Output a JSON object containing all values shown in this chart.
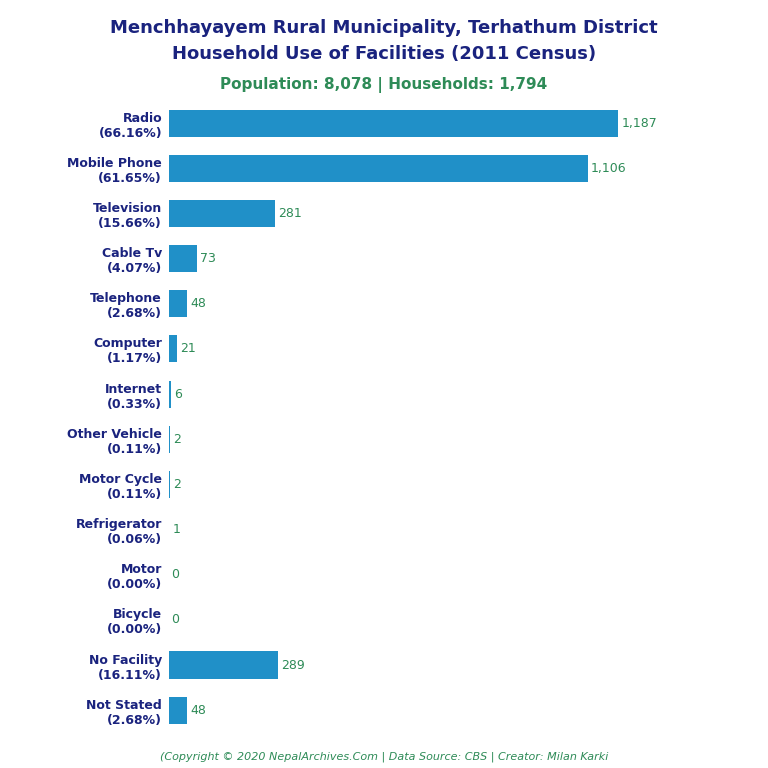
{
  "title_line1": "Menchhayayem Rural Municipality, Terhathum District",
  "title_line2": "Household Use of Facilities (2011 Census)",
  "subtitle": "Population: 8,078 | Households: 1,794",
  "footer": "(Copyright © 2020 NepalArchives.Com | Data Source: CBS | Creator: Milan Karki",
  "categories": [
    "Radio\n(66.16%)",
    "Mobile Phone\n(61.65%)",
    "Television\n(15.66%)",
    "Cable Tv\n(4.07%)",
    "Telephone\n(2.68%)",
    "Computer\n(1.17%)",
    "Internet\n(0.33%)",
    "Other Vehicle\n(0.11%)",
    "Motor Cycle\n(0.11%)",
    "Refrigerator\n(0.06%)",
    "Motor\n(0.00%)",
    "Bicycle\n(0.00%)",
    "No Facility\n(16.11%)",
    "Not Stated\n(2.68%)"
  ],
  "values": [
    1187,
    1106,
    281,
    73,
    48,
    21,
    6,
    2,
    2,
    1,
    0,
    0,
    289,
    48
  ],
  "bar_color": "#2090C8",
  "value_color": "#2E8B57",
  "title_color": "#1a237e",
  "subtitle_color": "#2E8B57",
  "footer_color": "#2E8B57",
  "background_color": "#ffffff",
  "xlim": [
    0,
    1380
  ]
}
